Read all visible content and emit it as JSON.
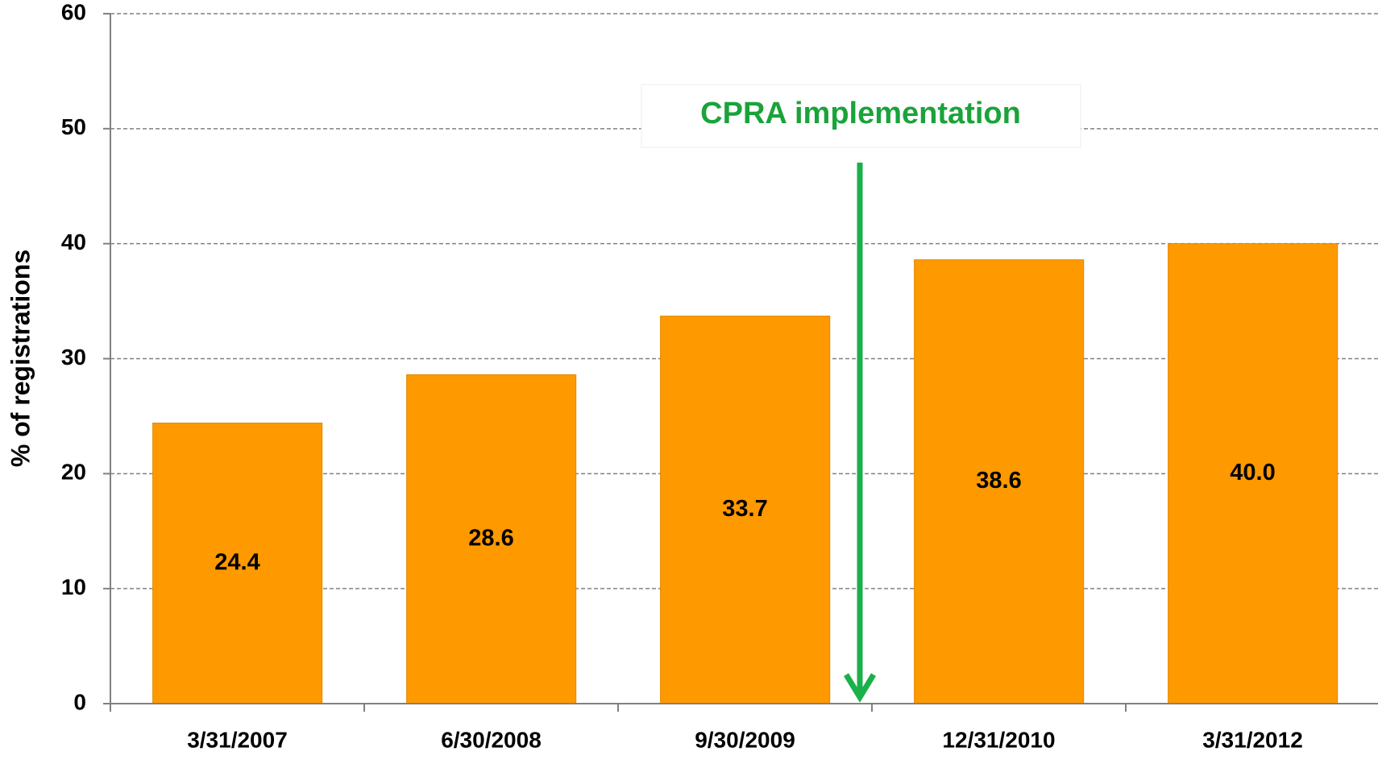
{
  "chart_data": {
    "type": "bar",
    "y_axis_label": "% of registrations",
    "categories": [
      "3/31/2007",
      "6/30/2008",
      "9/30/2009",
      "12/31/2010",
      "3/31/2012"
    ],
    "values": [
      24.4,
      28.6,
      33.7,
      38.6,
      40
    ],
    "value_labels": [
      "24.4",
      "28.6",
      "33.7",
      "38.6",
      "40.0"
    ],
    "color": "#ff9900",
    "ylim": [
      0,
      60
    ],
    "yticks": [
      0,
      10,
      20,
      30,
      40,
      50,
      60
    ],
    "grid": true,
    "annotation": "CPRA implementation"
  }
}
